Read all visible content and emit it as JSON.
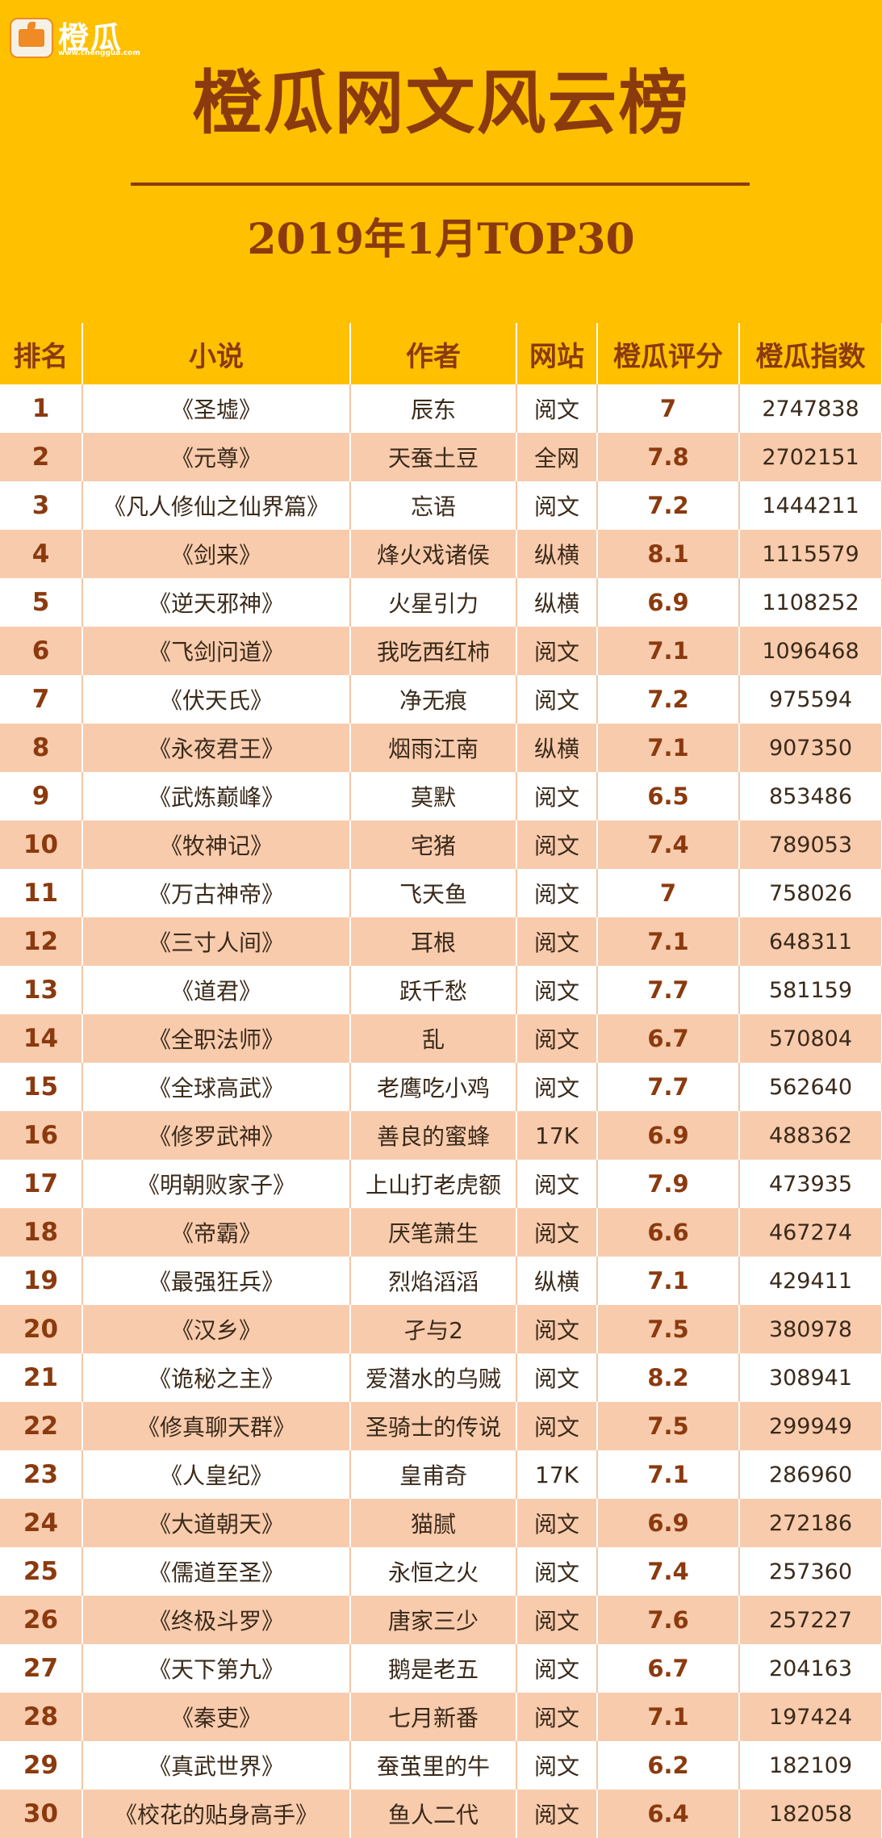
{
  "logo": {
    "name": "橙瓜",
    "url": "www.chenggua.com"
  },
  "title": "橙瓜网文风云榜",
  "subtitle": "2019年1月TOP30",
  "columns": [
    "排名",
    "小说",
    "作者",
    "网站",
    "橙瓜评分",
    "橙瓜指数"
  ],
  "rows": [
    {
      "rank": "1",
      "novel": "《圣墟》",
      "author": "辰东",
      "site": "阅文",
      "score": "7",
      "index": "2747838"
    },
    {
      "rank": "2",
      "novel": "《元尊》",
      "author": "天蚕土豆",
      "site": "全网",
      "score": "7.8",
      "index": "2702151"
    },
    {
      "rank": "3",
      "novel": "《凡人修仙之仙界篇》",
      "author": "忘语",
      "site": "阅文",
      "score": "7.2",
      "index": "1444211"
    },
    {
      "rank": "4",
      "novel": "《剑来》",
      "author": "烽火戏诸侯",
      "site": "纵横",
      "score": "8.1",
      "index": "1115579"
    },
    {
      "rank": "5",
      "novel": "《逆天邪神》",
      "author": "火星引力",
      "site": "纵横",
      "score": "6.9",
      "index": "1108252"
    },
    {
      "rank": "6",
      "novel": "《飞剑问道》",
      "author": "我吃西红柿",
      "site": "阅文",
      "score": "7.1",
      "index": "1096468"
    },
    {
      "rank": "7",
      "novel": "《伏天氏》",
      "author": "净无痕",
      "site": "阅文",
      "score": "7.2",
      "index": "975594"
    },
    {
      "rank": "8",
      "novel": "《永夜君王》",
      "author": "烟雨江南",
      "site": "纵横",
      "score": "7.1",
      "index": "907350"
    },
    {
      "rank": "9",
      "novel": "《武炼巅峰》",
      "author": "莫默",
      "site": "阅文",
      "score": "6.5",
      "index": "853486"
    },
    {
      "rank": "10",
      "novel": "《牧神记》",
      "author": "宅猪",
      "site": "阅文",
      "score": "7.4",
      "index": "789053"
    },
    {
      "rank": "11",
      "novel": "《万古神帝》",
      "author": "飞天鱼",
      "site": "阅文",
      "score": "7",
      "index": "758026"
    },
    {
      "rank": "12",
      "novel": "《三寸人间》",
      "author": "耳根",
      "site": "阅文",
      "score": "7.1",
      "index": "648311"
    },
    {
      "rank": "13",
      "novel": "《道君》",
      "author": "跃千愁",
      "site": "阅文",
      "score": "7.7",
      "index": "581159"
    },
    {
      "rank": "14",
      "novel": "《全职法师》",
      "author": "乱",
      "site": "阅文",
      "score": "6.7",
      "index": "570804"
    },
    {
      "rank": "15",
      "novel": "《全球高武》",
      "author": "老鹰吃小鸡",
      "site": "阅文",
      "score": "7.7",
      "index": "562640"
    },
    {
      "rank": "16",
      "novel": "《修罗武神》",
      "author": "善良的蜜蜂",
      "site": "17K",
      "score": "6.9",
      "index": "488362"
    },
    {
      "rank": "17",
      "novel": "《明朝败家子》",
      "author": "上山打老虎额",
      "site": "阅文",
      "score": "7.9",
      "index": "473935"
    },
    {
      "rank": "18",
      "novel": "《帝霸》",
      "author": "厌笔萧生",
      "site": "阅文",
      "score": "6.6",
      "index": "467274"
    },
    {
      "rank": "19",
      "novel": "《最强狂兵》",
      "author": "烈焰滔滔",
      "site": "纵横",
      "score": "7.1",
      "index": "429411"
    },
    {
      "rank": "20",
      "novel": "《汉乡》",
      "author": "孑与2",
      "site": "阅文",
      "score": "7.5",
      "index": "380978"
    },
    {
      "rank": "21",
      "novel": "《诡秘之主》",
      "author": "爱潜水的乌贼",
      "site": "阅文",
      "score": "8.2",
      "index": "308941"
    },
    {
      "rank": "22",
      "novel": "《修真聊天群》",
      "author": "圣骑士的传说",
      "site": "阅文",
      "score": "7.5",
      "index": "299949"
    },
    {
      "rank": "23",
      "novel": "《人皇纪》",
      "author": "皇甫奇",
      "site": "17K",
      "score": "7.1",
      "index": "286960"
    },
    {
      "rank": "24",
      "novel": "《大道朝天》",
      "author": "猫腻",
      "site": "阅文",
      "score": "6.9",
      "index": "272186"
    },
    {
      "rank": "25",
      "novel": "《儒道至圣》",
      "author": "永恒之火",
      "site": "阅文",
      "score": "7.4",
      "index": "257360"
    },
    {
      "rank": "26",
      "novel": "《终极斗罗》",
      "author": "唐家三少",
      "site": "阅文",
      "score": "7.6",
      "index": "257227"
    },
    {
      "rank": "27",
      "novel": "《天下第九》",
      "author": "鹅是老五",
      "site": "阅文",
      "score": "6.7",
      "index": "204163"
    },
    {
      "rank": "28",
      "novel": "《秦吏》",
      "author": "七月新番",
      "site": "阅文",
      "score": "7.1",
      "index": "197424"
    },
    {
      "rank": "29",
      "novel": "《真武世界》",
      "author": "蚕茧里的牛",
      "site": "阅文",
      "score": "6.2",
      "index": "182109"
    },
    {
      "rank": "30",
      "novel": "《校花的贴身高手》",
      "author": "鱼人二代",
      "site": "阅文",
      "score": "6.4",
      "index": "182058"
    }
  ]
}
